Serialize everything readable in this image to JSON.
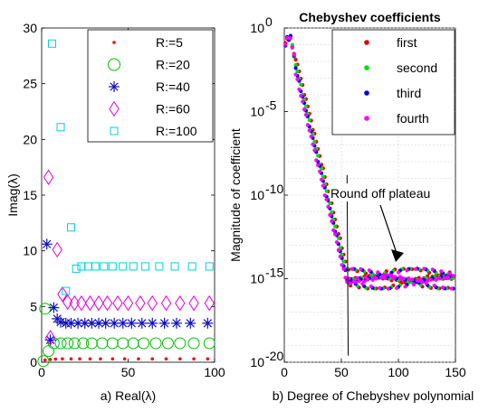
{
  "chart_data": [
    {
      "type": "scatter",
      "xlabel": "a) Real(λ)",
      "ylabel": "Imag(λ)",
      "xlim": [
        0,
        100
      ],
      "ylim": [
        0,
        30
      ],
      "xticks": [
        "0",
        "50",
        "100"
      ],
      "yticks": [
        "0",
        "5",
        "10",
        "15",
        "20",
        "25",
        "30"
      ],
      "legend_position": "top-right",
      "grid": false,
      "series": [
        {
          "name": "R:=5",
          "marker": "dot",
          "color": "#ff0000",
          "x": [
            2,
            5,
            8,
            12,
            17,
            22,
            28,
            34,
            41,
            48,
            56,
            64,
            72,
            80,
            88,
            96
          ],
          "y": [
            0.2,
            0.25,
            0.28,
            0.3,
            0.3,
            0.3,
            0.3,
            0.3,
            0.3,
            0.3,
            0.3,
            0.3,
            0.3,
            0.3,
            0.3,
            0.3
          ]
        },
        {
          "name": "R:=20",
          "marker": "circle",
          "color": "#00c000",
          "x": [
            1,
            2,
            4,
            7,
            11,
            15,
            19,
            24,
            29,
            35,
            41,
            47,
            53,
            59,
            66,
            73,
            80,
            88,
            97
          ],
          "y": [
            0.1,
            4.8,
            1.0,
            1.7,
            1.7,
            1.7,
            1.7,
            1.7,
            1.7,
            1.7,
            1.7,
            1.7,
            1.7,
            1.7,
            1.7,
            1.7,
            1.7,
            1.7,
            1.7
          ]
        },
        {
          "name": "R:=40",
          "marker": "asterisk",
          "color": "#1010c0",
          "x": [
            3,
            5,
            7,
            9,
            11,
            14,
            17,
            21,
            25,
            29,
            33,
            37,
            42,
            47,
            52,
            58,
            64,
            71,
            78,
            86,
            96
          ],
          "y": [
            10.6,
            2.0,
            4.9,
            3.9,
            3.6,
            3.5,
            3.5,
            3.5,
            3.5,
            3.5,
            3.5,
            3.5,
            3.5,
            3.5,
            3.5,
            3.5,
            3.5,
            3.5,
            3.5,
            3.5,
            3.5
          ]
        },
        {
          "name": "R:=60",
          "marker": "diamond",
          "color": "#e000e0",
          "x": [
            4,
            5,
            9,
            12,
            15,
            19,
            23,
            28,
            33,
            38,
            44,
            50,
            57,
            64,
            72,
            80,
            88,
            97
          ],
          "y": [
            16.6,
            2.2,
            10.1,
            6.1,
            5.4,
            5.3,
            5.3,
            5.3,
            5.3,
            5.3,
            5.3,
            5.3,
            5.3,
            5.3,
            5.3,
            5.3,
            5.3,
            5.3
          ]
        },
        {
          "name": "R:=100",
          "marker": "square",
          "color": "#00d0e0",
          "x": [
            6,
            11,
            14,
            17,
            20,
            23,
            27,
            31,
            36,
            41,
            47,
            53,
            60,
            68,
            77,
            87,
            97
          ],
          "y": [
            28.6,
            21.1,
            6.4,
            12.1,
            8.4,
            8.6,
            8.6,
            8.6,
            8.6,
            8.6,
            8.6,
            8.6,
            8.6,
            8.6,
            8.6,
            8.6,
            8.6
          ]
        }
      ]
    },
    {
      "type": "scatter",
      "title": "Chebyshev coefficients",
      "xlabel": "b) Degree of Chebyshev polynomial",
      "ylabel": "Magnitude of coefficient",
      "xlim": [
        0,
        150
      ],
      "ylim": [
        1e-20,
        1
      ],
      "log_y": true,
      "xticks": [
        "0",
        "50",
        "100",
        "150"
      ],
      "yticks": [
        "10",
        "10",
        "10",
        "10",
        "10"
      ],
      "ytick_exponents": [
        "0",
        "-5",
        "-10",
        "-15",
        "-20"
      ],
      "grid": true,
      "legend_position": "top-right",
      "series": [
        {
          "name": "first",
          "color": "#e00000",
          "offset": -1.5
        },
        {
          "name": "second",
          "color": "#00e000",
          "offset": 0.0
        },
        {
          "name": "third",
          "color": "#0000e0",
          "offset": 0.8
        },
        {
          "name": "fourth",
          "color": "#ff00ff",
          "offset": 2.0
        }
      ],
      "annotation": {
        "text": "Round off plateau",
        "arrow_to": [
          100,
          1e-14
        ]
      }
    }
  ]
}
